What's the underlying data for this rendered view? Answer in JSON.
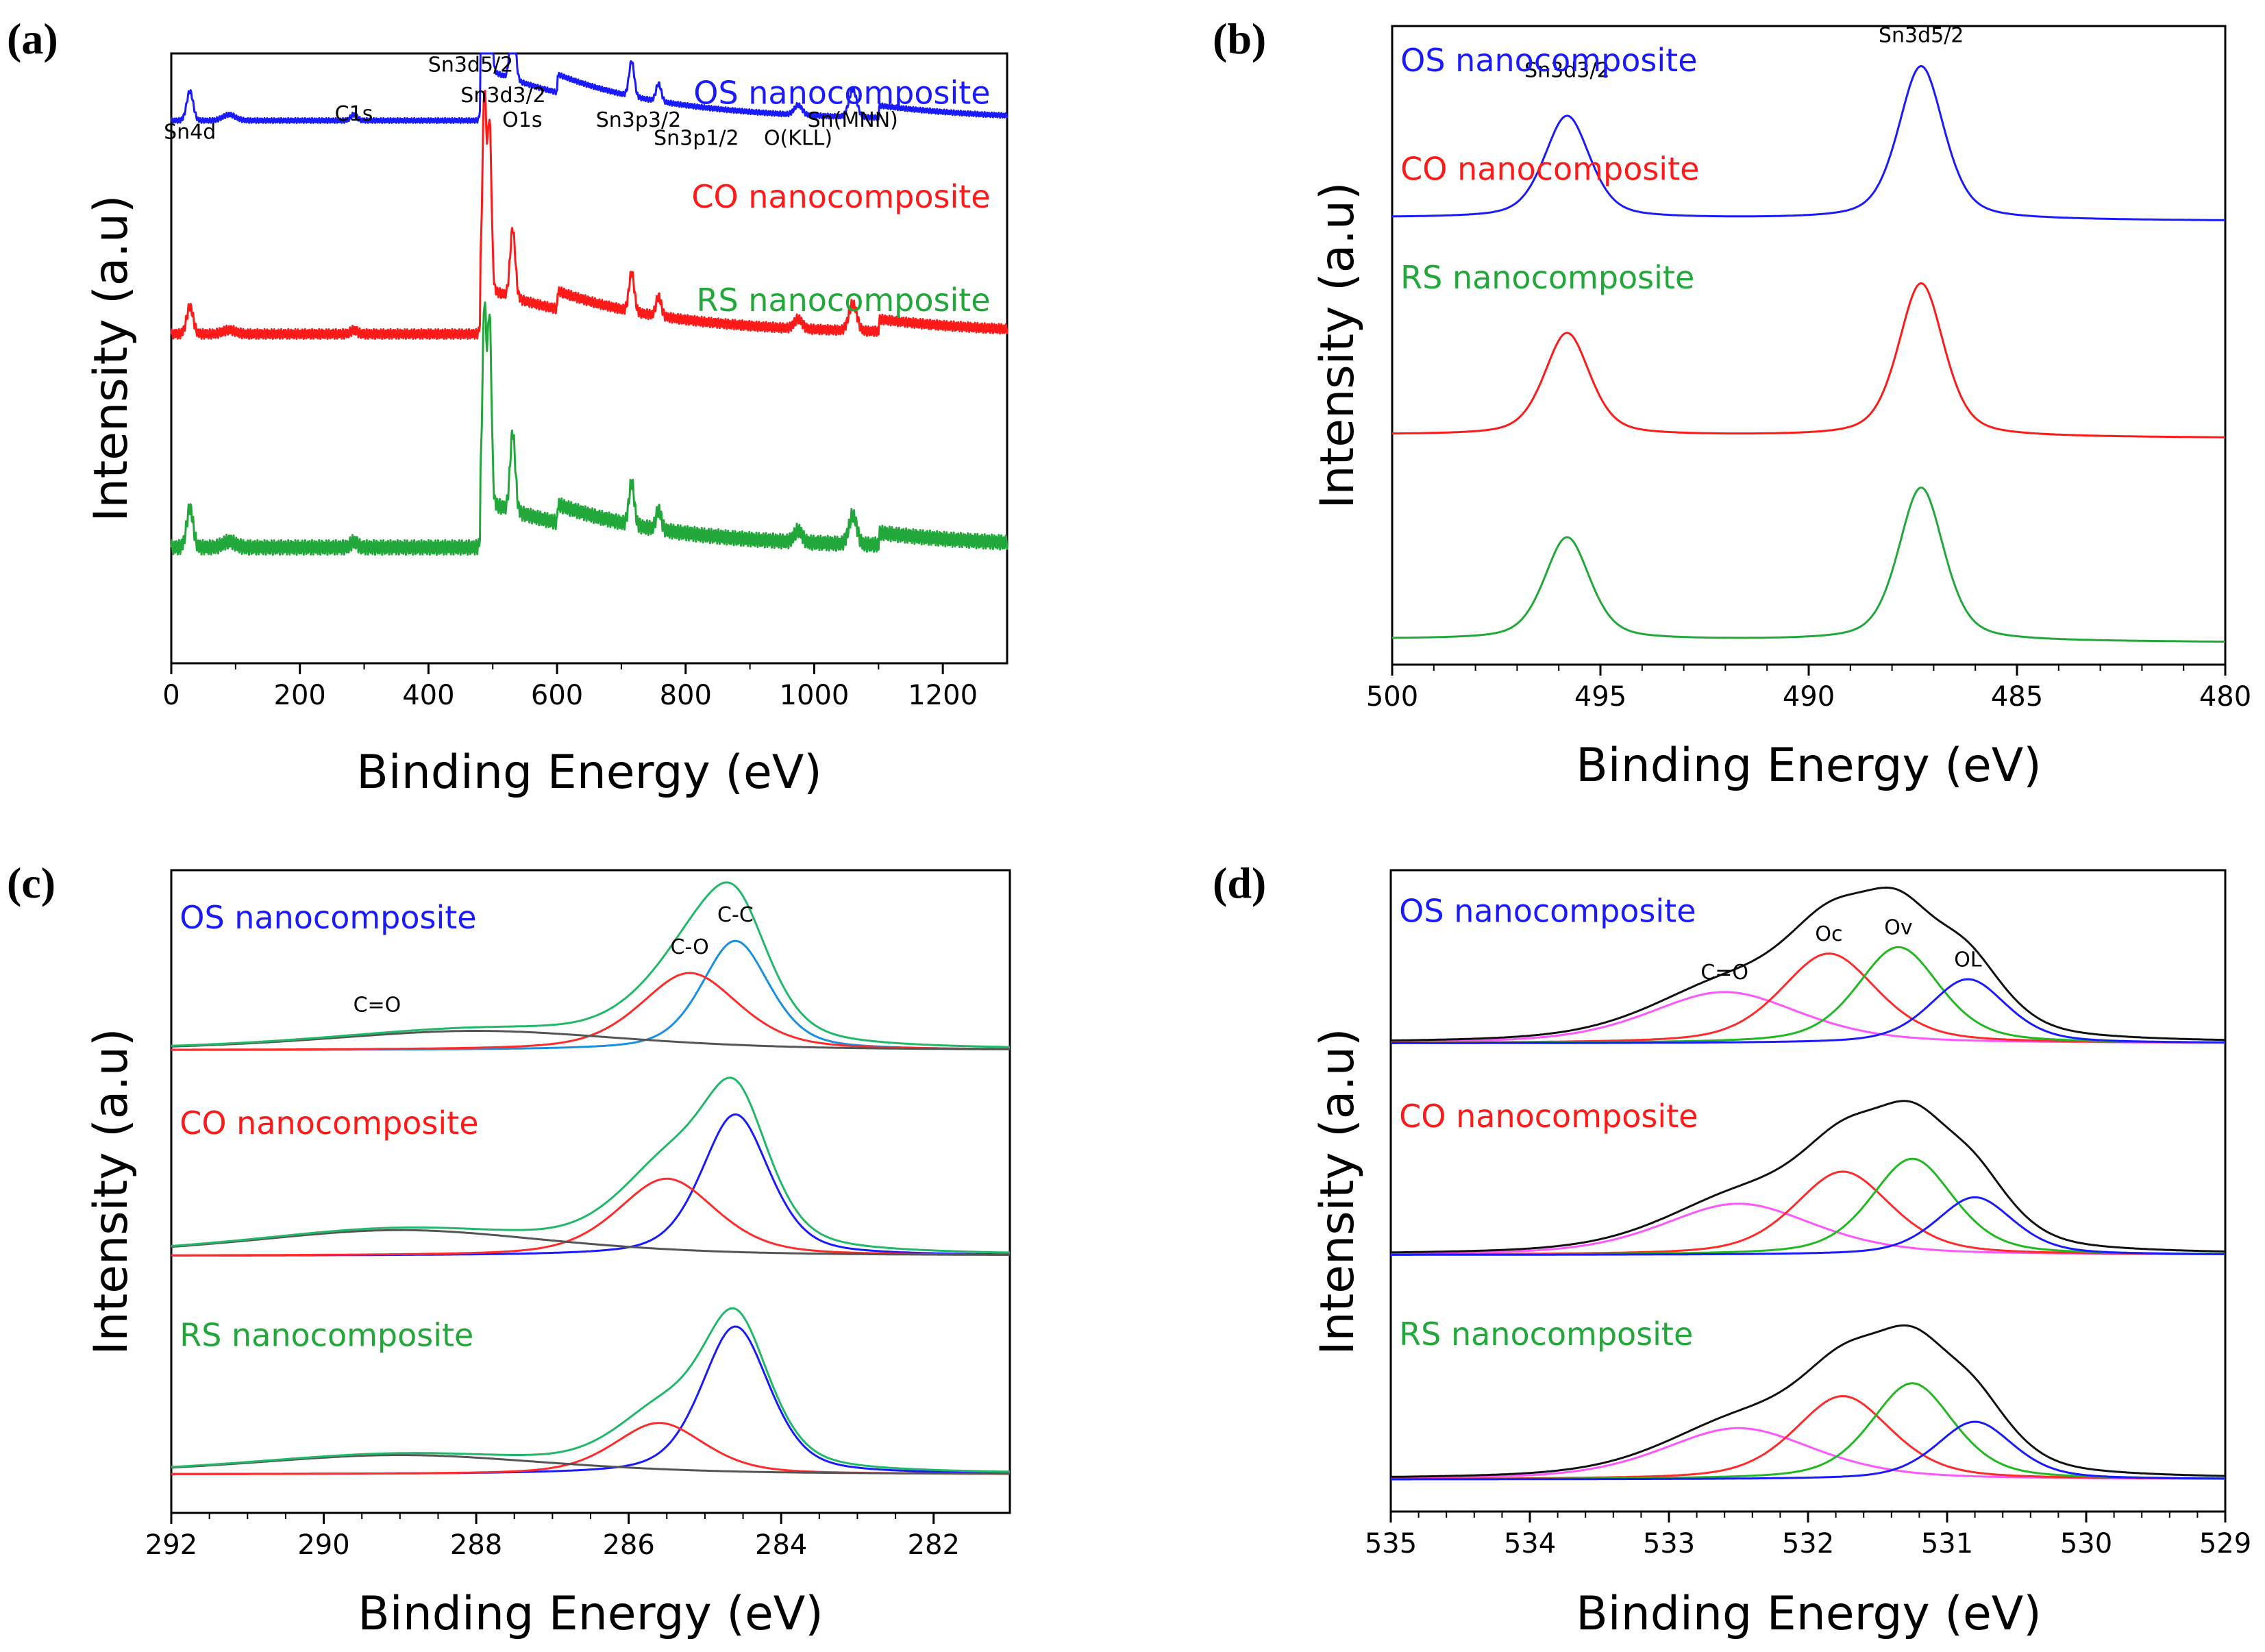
{
  "chart_data": [
    {
      "id": "a",
      "panel_label": "(a)",
      "type": "line",
      "title": "",
      "xlabel": "Binding Energy (eV)",
      "ylabel": "Intensity (a.u)",
      "xlim": [
        0,
        1300
      ],
      "xticks": [
        0,
        200,
        400,
        600,
        800,
        1000,
        1200
      ],
      "xtick_labels": [
        "0",
        "200",
        "400",
        "600",
        "800",
        "1000",
        "1200"
      ],
      "x_direction": "normal",
      "grid": false,
      "series": [
        {
          "name": "OS nanocomposite",
          "color": "#1a1aff",
          "baseline": 0.89,
          "peaks": [
            [
              29,
              0.15,
              5
            ],
            [
              90,
              0.03,
              10
            ],
            [
              284,
              0.03,
              5
            ],
            [
              487,
              0.9,
              3
            ],
            [
              495,
              0.7,
              3
            ],
            [
              531,
              0.35,
              4
            ],
            [
              716,
              0.18,
              4
            ],
            [
              758,
              0.09,
              4
            ],
            [
              975,
              0.05,
              6
            ],
            [
              1060,
              0.14,
              6
            ]
          ],
          "steps": [
            [
              480,
              0.09
            ],
            [
              600,
              0.03
            ],
            [
              1100,
              0.02
            ]
          ]
        },
        {
          "name": "CO nanocomposite",
          "color": "#ff1a1a",
          "baseline": 0.54,
          "peaks": [
            [
              29,
              0.14,
              5
            ],
            [
              90,
              0.02,
              10
            ],
            [
              284,
              0.02,
              5
            ],
            [
              487,
              1.0,
              3
            ],
            [
              495,
              0.85,
              3
            ],
            [
              531,
              0.35,
              4
            ],
            [
              716,
              0.2,
              4
            ],
            [
              758,
              0.1,
              4
            ],
            [
              975,
              0.05,
              6
            ],
            [
              1060,
              0.14,
              6
            ]
          ],
          "steps": [
            [
              480,
              0.08
            ],
            [
              600,
              0.03
            ],
            [
              1100,
              0.02
            ]
          ]
        },
        {
          "name": "RS nanocomposite",
          "color": "#22a83a",
          "baseline": 0.19,
          "peaks": [
            [
              29,
              0.2,
              5
            ],
            [
              90,
              0.03,
              10
            ],
            [
              284,
              0.03,
              5
            ],
            [
              487,
              1.0,
              3
            ],
            [
              495,
              0.95,
              3
            ],
            [
              531,
              0.4,
              4
            ],
            [
              716,
              0.22,
              4
            ],
            [
              758,
              0.1,
              4
            ],
            [
              975,
              0.06,
              6
            ],
            [
              1060,
              0.15,
              6
            ]
          ],
          "steps": [
            [
              480,
              0.08
            ],
            [
              600,
              0.03
            ],
            [
              1100,
              0.02
            ]
          ]
        }
      ],
      "annotations": [
        {
          "text": "Sn4d",
          "x": 29
        },
        {
          "text": "C1s",
          "x": 284
        },
        {
          "text": "Sn3d5/2",
          "x": 487
        },
        {
          "text": "Sn3d3/2",
          "x": 495
        },
        {
          "text": "O1s",
          "x": 531
        },
        {
          "text": "Sn3p3/2",
          "x": 716
        },
        {
          "text": "Sn3p1/2",
          "x": 758
        },
        {
          "text": "O(KLL)",
          "x": 975
        },
        {
          "text": "Sn(MNN)",
          "x": 1060
        }
      ]
    },
    {
      "id": "b",
      "panel_label": "(b)",
      "type": "line",
      "title": "",
      "xlabel": "Binding Energy (eV)",
      "ylabel": "Intensity (a.u)",
      "xlim": [
        500,
        480
      ],
      "xticks": [
        500,
        495,
        490,
        485,
        480
      ],
      "xtick_labels": [
        "500",
        "495",
        "490",
        "485",
        "480"
      ],
      "x_direction": "reversed",
      "grid": false,
      "series": [
        {
          "name": "OS nanocomposite",
          "color": "#1a1aff",
          "baseline": 0.7,
          "slope": -0.005,
          "peaks": [
            [
              495.8,
              0.16,
              0.55
            ],
            [
              487.3,
              0.24,
              0.55
            ]
          ]
        },
        {
          "name": "CO nanocomposite",
          "color": "#ff1a1a",
          "baseline": 0.36,
          "slope": -0.005,
          "peaks": [
            [
              495.8,
              0.16,
              0.55
            ],
            [
              487.3,
              0.24,
              0.55
            ]
          ]
        },
        {
          "name": "RS nanocomposite",
          "color": "#22a83a",
          "baseline": 0.04,
          "slope": -0.005,
          "peaks": [
            [
              495.8,
              0.16,
              0.55
            ],
            [
              487.3,
              0.24,
              0.55
            ]
          ]
        }
      ],
      "annotations": [
        {
          "text": "Sn3d3/2",
          "x": 495.8
        },
        {
          "text": "Sn3d5/2",
          "x": 487.3
        }
      ]
    },
    {
      "id": "c",
      "panel_label": "(c)",
      "type": "line",
      "title": "",
      "xlabel": "Binding Energy (eV)",
      "ylabel": "Intensity (a.u)",
      "xlim": [
        292,
        281
      ],
      "xticks": [
        292,
        290,
        288,
        286,
        284,
        282
      ],
      "xtick_labels": [
        "292",
        "290",
        "288",
        "286",
        "284",
        "282"
      ],
      "x_direction": "reversed",
      "grid": false,
      "groups": [
        {
          "name": "OS nanocomposite",
          "name_color": "#1a1aff",
          "baseline": 0.72,
          "components": [
            {
              "label": "C-C",
              "center": 284.6,
              "height": 0.17,
              "width": 0.45,
              "color": "#1a8fe0"
            },
            {
              "label": "C-O",
              "center": 285.2,
              "height": 0.12,
              "width": 0.65,
              "color": "#ff2a2a"
            },
            {
              "label": "C=O",
              "center": 288.0,
              "height": 0.03,
              "width": 2.0,
              "color": "#555555"
            }
          ],
          "envelope_color": "#22b86a"
        },
        {
          "name": "CO nanocomposite",
          "name_color": "#ff1a1a",
          "baseline": 0.4,
          "components": [
            {
              "label": "C-C",
              "center": 284.6,
              "height": 0.22,
              "width": 0.45,
              "color": "#1a1aff"
            },
            {
              "label": "C-O",
              "center": 285.5,
              "height": 0.12,
              "width": 0.65,
              "color": "#ff2a2a"
            },
            {
              "label": "C=O",
              "center": 289.0,
              "height": 0.04,
              "width": 2.0,
              "color": "#555555"
            }
          ],
          "envelope_color": "#22b86a"
        },
        {
          "name": "RS nanocomposite",
          "name_color": "#22a83a",
          "baseline": 0.06,
          "components": [
            {
              "label": "C-C",
              "center": 284.6,
              "height": 0.23,
              "width": 0.45,
              "color": "#1a1aff"
            },
            {
              "label": "C-O",
              "center": 285.6,
              "height": 0.08,
              "width": 0.6,
              "color": "#ff2a2a"
            },
            {
              "label": "C=O",
              "center": 289.0,
              "height": 0.03,
              "width": 2.0,
              "color": "#555555"
            }
          ],
          "envelope_color": "#22b86a"
        }
      ],
      "annotations": [
        {
          "text": "C=O",
          "x": 289.3,
          "group": 0
        },
        {
          "text": "C-O",
          "x": 285.2,
          "group": 0
        },
        {
          "text": "C-C",
          "x": 284.6,
          "group": 0
        }
      ]
    },
    {
      "id": "d",
      "panel_label": "(d)",
      "type": "line",
      "title": "",
      "xlabel": "Binding Energy (eV)",
      "ylabel": "Intensity (a.u)",
      "xlim": [
        535,
        529
      ],
      "xticks": [
        535,
        534,
        533,
        532,
        531,
        530,
        529
      ],
      "xtick_labels": [
        "535",
        "534",
        "533",
        "532",
        "531",
        "530",
        "529"
      ],
      "x_direction": "reversed",
      "grid": false,
      "groups": [
        {
          "name": "OS nanocomposite",
          "name_color": "#1a1aff",
          "baseline": 0.73,
          "components": [
            {
              "label": "C=O",
              "center": 532.6,
              "height": 0.08,
              "width": 0.55,
              "color": "#ff55ff"
            },
            {
              "label": "Oc",
              "center": 531.85,
              "height": 0.14,
              "width": 0.35,
              "color": "#ff2a2a"
            },
            {
              "label": "Ov",
              "center": 531.35,
              "height": 0.15,
              "width": 0.3,
              "color": "#22b822"
            },
            {
              "label": "OL",
              "center": 530.85,
              "height": 0.1,
              "width": 0.28,
              "color": "#1a1aff"
            }
          ],
          "envelope_color": "#111111"
        },
        {
          "name": "CO nanocomposite",
          "name_color": "#ff1a1a",
          "baseline": 0.4,
          "components": [
            {
              "label": "C=O",
              "center": 532.5,
              "height": 0.08,
              "width": 0.55,
              "color": "#ff55ff"
            },
            {
              "label": "Oc",
              "center": 531.75,
              "height": 0.13,
              "width": 0.35,
              "color": "#ff2a2a"
            },
            {
              "label": "Ov",
              "center": 531.25,
              "height": 0.15,
              "width": 0.3,
              "color": "#22b822"
            },
            {
              "label": "OL",
              "center": 530.8,
              "height": 0.09,
              "width": 0.28,
              "color": "#1a1aff"
            }
          ],
          "envelope_color": "#111111"
        },
        {
          "name": "RS nanocomposite",
          "name_color": "#22a83a",
          "baseline": 0.05,
          "components": [
            {
              "label": "C=O",
              "center": 532.5,
              "height": 0.08,
              "width": 0.55,
              "color": "#ff55ff"
            },
            {
              "label": "Oc",
              "center": 531.75,
              "height": 0.13,
              "width": 0.35,
              "color": "#ff2a2a"
            },
            {
              "label": "Ov",
              "center": 531.25,
              "height": 0.15,
              "width": 0.3,
              "color": "#22b822"
            },
            {
              "label": "OL",
              "center": 530.8,
              "height": 0.09,
              "width": 0.28,
              "color": "#1a1aff"
            }
          ],
          "envelope_color": "#111111"
        }
      ],
      "annotations": [
        {
          "text": "C=O",
          "x": 532.6,
          "group": 0
        },
        {
          "text": "Oc",
          "x": 531.85,
          "group": 0
        },
        {
          "text": "Ov",
          "x": 531.35,
          "group": 0
        },
        {
          "text": "OL",
          "x": 530.85,
          "group": 0
        }
      ]
    }
  ]
}
